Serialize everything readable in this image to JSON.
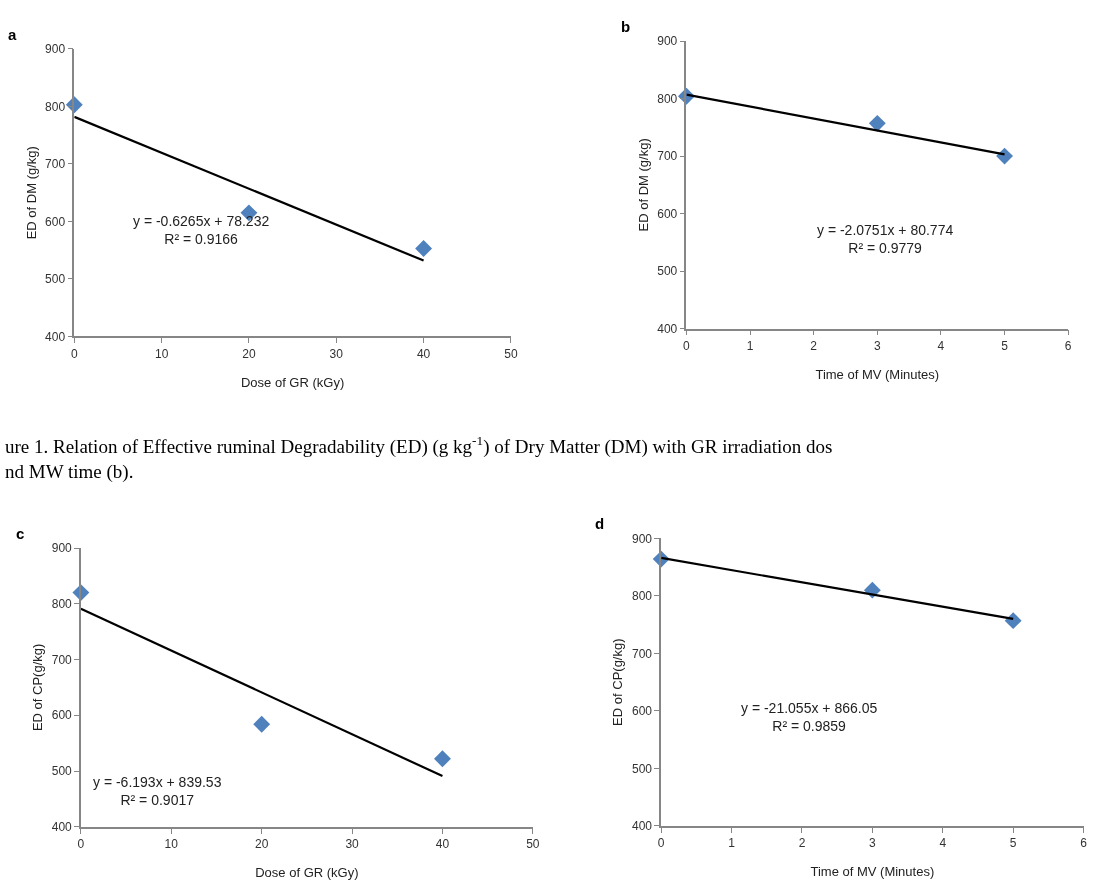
{
  "chart_data": [
    {
      "type": "scatter",
      "title": "a",
      "xlabel": "Dose of GR (kGy)",
      "ylabel": "ED of DM (g/kg)",
      "xlim": [
        0,
        50
      ],
      "xticks": [
        0,
        10,
        20,
        30,
        40,
        50
      ],
      "ylim": [
        400,
        900
      ],
      "yticks": [
        400,
        500,
        600,
        700,
        800,
        900
      ],
      "series": [
        {
          "marker": "diamond",
          "color": "#4f81bd",
          "x": [
            0,
            20,
            40
          ],
          "values": [
            803,
            615,
            553
          ]
        },
        {
          "type": "line",
          "color": "#000000",
          "x": [
            0,
            40
          ],
          "values": [
            782,
            532
          ]
        }
      ],
      "annotations": [
        "y = -0.6265x + 78.232\nR² = 0.9166",
        "ure 1. Relation of Effective ruminal Degradability (ED) (g kg$^{-1}$) of Dry Matter (DM) with GR irradiation dos\nnd MW time (b)."
      ]
    },
    {
      "type": "scatter",
      "title": "b",
      "xlabel": "Time of MV (Minutes)",
      "ylabel": "ED of DM (g/kg)",
      "xlim": [
        0,
        6
      ],
      "xticks": [
        0,
        1,
        2,
        3,
        4,
        5,
        6
      ],
      "ylim": [
        400,
        900
      ],
      "yticks": [
        400,
        500,
        600,
        700,
        800,
        900
      ],
      "series": [
        {
          "marker": "diamond",
          "color": "#4f81bd",
          "x": [
            0,
            3,
            5
          ],
          "values": [
            804,
            757,
            700
          ]
        },
        {
          "type": "line",
          "color": "#000000",
          "x": [
            0,
            5
          ],
          "values": [
            807,
            703
          ]
        }
      ],
      "annotations": [
        "y = -2.0751x + 80.774\nR² = 0.9779"
      ]
    },
    {
      "type": "scatter",
      "title": "c",
      "xlabel": "Dose of GR (kGy)",
      "ylabel": "ED of CP(g/kg)",
      "xlim": [
        0,
        50
      ],
      "xticks": [
        0,
        10,
        20,
        30,
        40,
        50
      ],
      "ylim": [
        400,
        900
      ],
      "yticks": [
        400,
        500,
        600,
        700,
        800,
        900
      ],
      "series": [
        {
          "marker": "diamond",
          "color": "#4f81bd",
          "x": [
            0,
            20,
            40
          ],
          "values": [
            820,
            584,
            522
          ]
        },
        {
          "type": "line",
          "color": "#000000",
          "x": [
            0,
            40
          ],
          "values": [
            791,
            491
          ]
        }
      ],
      "annotations": [
        "y = -6.193x + 839.53\nR² = 0.9017"
      ]
    },
    {
      "type": "scatter",
      "title": "d",
      "xlabel": "Time of MV (Minutes)",
      "ylabel": "ED of CP(g/kg)",
      "xlim": [
        0,
        6
      ],
      "xticks": [
        0,
        1,
        2,
        3,
        4,
        5,
        6
      ],
      "ylim": [
        400,
        900
      ],
      "yticks": [
        400,
        500,
        600,
        700,
        800,
        900
      ],
      "series": [
        {
          "marker": "diamond",
          "color": "#4f81bd",
          "x": [
            0,
            3,
            5
          ],
          "values": [
            864,
            810,
            757
          ]
        },
        {
          "type": "line",
          "color": "#000000",
          "x": [
            0,
            5
          ],
          "values": [
            866,
            760
          ]
        }
      ],
      "annotations": [
        "y = -21.055x + 866.05\nR² = 0.9859"
      ]
    }
  ]
}
